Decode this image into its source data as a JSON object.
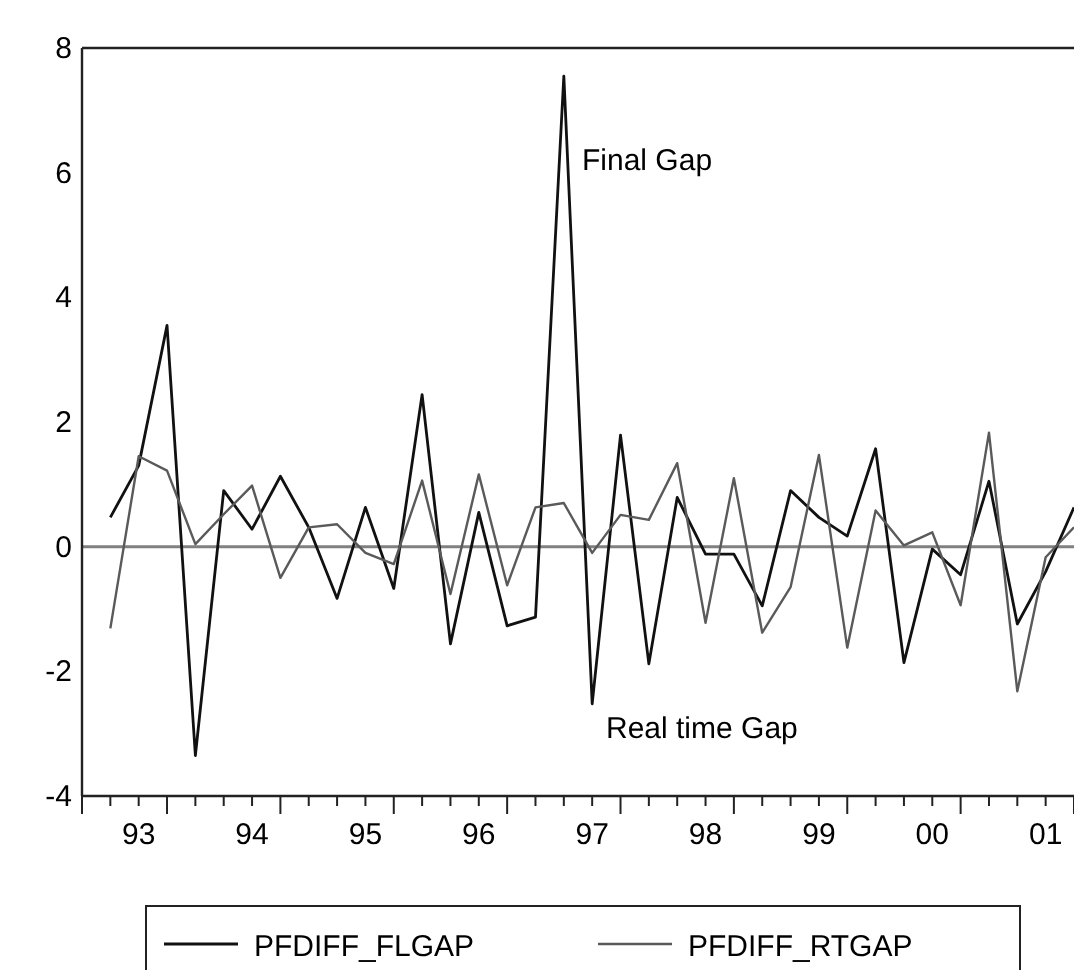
{
  "chart_data": {
    "type": "line",
    "categories": [
      null,
      "93",
      null,
      null,
      null,
      "94",
      null,
      null,
      null,
      "95",
      null,
      null,
      null,
      "96",
      null,
      null,
      null,
      "97",
      null,
      null,
      null,
      "98",
      null,
      null,
      null,
      "99",
      null,
      null,
      null,
      "00",
      null,
      null,
      null,
      "01",
      null
    ],
    "series": [
      {
        "name": "PFDIFF_FLGAP",
        "color": "#111111",
        "values": [
          0.47,
          1.3,
          3.55,
          -3.35,
          0.9,
          0.28,
          1.13,
          0.31,
          -0.83,
          0.63,
          -0.67,
          2.44,
          -1.56,
          0.55,
          -1.27,
          -1.13,
          7.55,
          -2.52,
          1.79,
          -1.88,
          0.79,
          -0.12,
          -0.12,
          -0.95,
          0.9,
          0.47,
          0.17,
          1.57,
          -1.86,
          -0.04,
          -0.45,
          1.05,
          -1.24,
          -0.4,
          0.63
        ]
      },
      {
        "name": "PFDIFF_RTGAP",
        "color": "#5a5a5a",
        "values": [
          -1.31,
          1.45,
          1.22,
          0.04,
          0.52,
          0.98,
          -0.5,
          0.31,
          0.36,
          -0.1,
          -0.28,
          1.06,
          -0.76,
          1.16,
          -0.62,
          0.63,
          0.7,
          -0.1,
          0.51,
          0.43,
          1.34,
          -1.22,
          1.1,
          -1.38,
          -0.65,
          1.47,
          -1.62,
          0.58,
          0.02,
          0.23,
          -0.94,
          1.83,
          -2.32,
          -0.17,
          0.31
        ]
      }
    ],
    "ylim": [
      -4,
      8
    ],
    "yticks": [
      -4,
      -2,
      0,
      2,
      4,
      6,
      8
    ],
    "ref_lines": [
      {
        "axis": "y",
        "value": 0,
        "color": "#808080"
      }
    ],
    "annotations": [
      "Final Gap",
      "Real time Gap"
    ],
    "grid": false,
    "legend": "bottom",
    "marker": "none",
    "line_style": "solid"
  }
}
